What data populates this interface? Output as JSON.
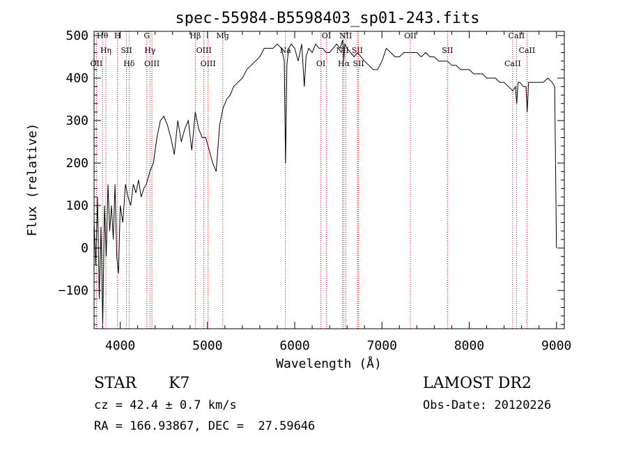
{
  "chart_data": {
    "type": "line",
    "title": "spec-55984-B5598403_sp01-243.fits",
    "xlabel": "Wavelength (Å)",
    "ylabel": "Flux (relative)",
    "xlim": [
      3700,
      9090
    ],
    "ylim": [
      -190,
      510
    ],
    "xticks": [
      4000,
      5000,
      6000,
      7000,
      8000,
      9000
    ],
    "yticks": [
      -100,
      0,
      100,
      200,
      300,
      400,
      500
    ],
    "line_color": "#000000",
    "marker_color": "#cc0000",
    "series": [
      {
        "x": [
          3700,
          3720,
          3740,
          3760,
          3780,
          3800,
          3820,
          3840,
          3860,
          3880,
          3900,
          3920,
          3940,
          3960,
          3980,
          4000,
          4030,
          4060,
          4090,
          4120,
          4150,
          4180,
          4210,
          4240,
          4270,
          4300,
          4340,
          4380,
          4420,
          4460,
          4500,
          4540,
          4580,
          4620,
          4660,
          4700,
          4740,
          4780,
          4820,
          4860,
          4900,
          4940,
          4980,
          5020,
          5060,
          5100,
          5140,
          5180,
          5220,
          5260,
          5300,
          5350,
          5400,
          5450,
          5500,
          5550,
          5600,
          5650,
          5700,
          5750,
          5800,
          5850,
          5880,
          5895,
          5910,
          5930,
          5960,
          6000,
          6040,
          6080,
          6110,
          6130,
          6160,
          6200,
          6240,
          6280,
          6320,
          6360,
          6400,
          6440,
          6480,
          6520,
          6550,
          6562,
          6575,
          6600,
          6640,
          6680,
          6720,
          6760,
          6800,
          6850,
          6900,
          6950,
          7000,
          7050,
          7100,
          7150,
          7200,
          7250,
          7300,
          7350,
          7400,
          7450,
          7500,
          7550,
          7600,
          7650,
          7700,
          7750,
          7800,
          7850,
          7900,
          7950,
          8000,
          8050,
          8100,
          8150,
          8200,
          8250,
          8300,
          8350,
          8400,
          8450,
          8500,
          8530,
          8545,
          8560,
          8580,
          8620,
          8650,
          8665,
          8680,
          8720,
          8760,
          8800,
          8850,
          8900,
          8950,
          8980,
          8995,
          9000
        ],
        "y": [
          60,
          -40,
          120,
          -120,
          50,
          -180,
          100,
          -20,
          150,
          40,
          100,
          20,
          150,
          -20,
          -60,
          100,
          60,
          150,
          120,
          100,
          150,
          130,
          160,
          120,
          140,
          150,
          180,
          200,
          260,
          300,
          310,
          290,
          260,
          220,
          300,
          250,
          280,
          300,
          230,
          320,
          280,
          260,
          260,
          230,
          200,
          180,
          290,
          330,
          350,
          360,
          380,
          390,
          400,
          420,
          430,
          440,
          450,
          470,
          470,
          470,
          480,
          470,
          440,
          200,
          430,
          470,
          480,
          470,
          440,
          480,
          380,
          450,
          470,
          460,
          480,
          470,
          470,
          460,
          460,
          470,
          480,
          470,
          490,
          440,
          480,
          470,
          460,
          450,
          460,
          450,
          440,
          430,
          420,
          420,
          440,
          470,
          460,
          450,
          450,
          460,
          460,
          460,
          460,
          450,
          460,
          450,
          450,
          440,
          440,
          440,
          430,
          430,
          420,
          420,
          420,
          410,
          410,
          410,
          400,
          400,
          400,
          390,
          390,
          380,
          370,
          380,
          340,
          390,
          390,
          380,
          380,
          320,
          390,
          390,
          390,
          390,
          390,
          400,
          390,
          380,
          100,
          0
        ]
      }
    ],
    "spectral_lines": [
      {
        "wl": 3797,
        "label": "Hθ"
      },
      {
        "wl": 3835,
        "label": "Hη"
      },
      {
        "wl": 3727,
        "label": "OII"
      },
      {
        "wl": 3969,
        "label": "H"
      },
      {
        "wl": 4072,
        "label": "SII"
      },
      {
        "wl": 4102,
        "label": "Hδ"
      },
      {
        "wl": 4305,
        "label": "G"
      },
      {
        "wl": 4341,
        "label": "Hγ"
      },
      {
        "wl": 4363,
        "label": "OIII"
      },
      {
        "wl": 4861,
        "label": "Hβ"
      },
      {
        "wl": 4959,
        "label": "OIII"
      },
      {
        "wl": 5007,
        "label": "OIII"
      },
      {
        "wl": 5175,
        "label": "Mg"
      },
      {
        "wl": 5893,
        "label": "Na"
      },
      {
        "wl": 6300,
        "label": "OI"
      },
      {
        "wl": 6364,
        "label": "OI"
      },
      {
        "wl": 6548,
        "label": "NII"
      },
      {
        "wl": 6563,
        "label": "Hα"
      },
      {
        "wl": 6584,
        "label": "NII"
      },
      {
        "wl": 6717,
        "label": "SII"
      },
      {
        "wl": 6731,
        "label": "SII"
      },
      {
        "wl": 7325,
        "label": "OII"
      },
      {
        "wl": 7751,
        "label": "SII"
      },
      {
        "wl": 8498,
        "label": "CaII"
      },
      {
        "wl": 8542,
        "label": "CaII"
      },
      {
        "wl": 8662,
        "label": "CaII"
      }
    ]
  },
  "info": {
    "class": "STAR",
    "subclass": "K7",
    "cz": "cz = 42.4 ± 0.7 km/s",
    "coords": "RA = 166.93867, DEC =  27.59646",
    "survey": "LAMOST DR2",
    "obs_date": "Obs-Date: 20120226"
  }
}
